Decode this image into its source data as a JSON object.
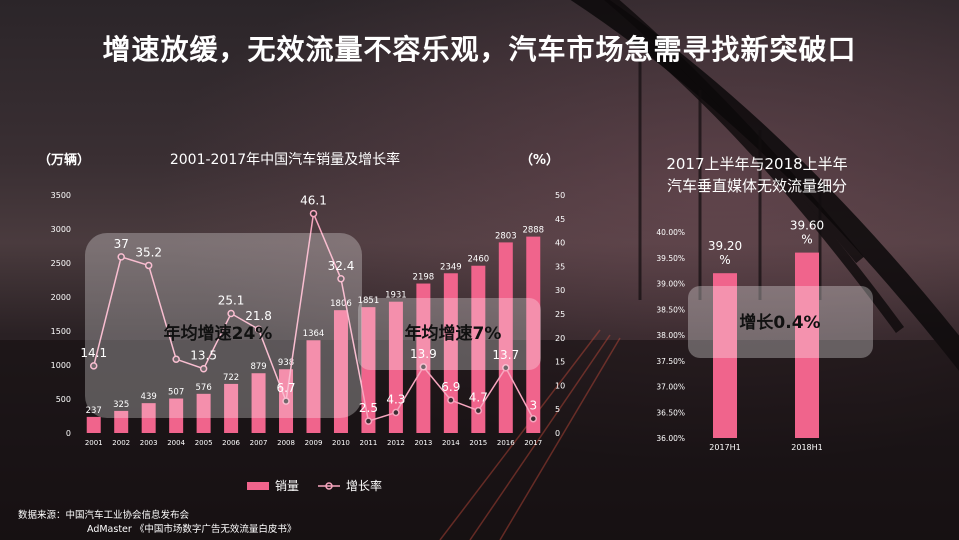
{
  "title": "增速放缓，无效流量不容乐观，汽车市场急需寻找新突破口",
  "left_chart": {
    "unit_left": "（万辆）",
    "unit_right": "（%）",
    "title": "2001-2017年中国汽车销量及增长率",
    "legend_bar": "销量",
    "legend_line": "增长率",
    "callout_1": "年均增速24%",
    "callout_2": "年均增速7%"
  },
  "right_chart": {
    "title_line1": "2017上半年与2018上半年",
    "title_line2": "汽车垂直媒体无效流量细分",
    "callout": "增长0.4%"
  },
  "source": {
    "line1": "数据来源：中国汽车工业协会信息发布会",
    "line2": "AdMaster 《中国市场数字广告无效流量白皮书》"
  },
  "colors": {
    "bar": "#f0648c",
    "line": "#f7a6bf",
    "box": "rgba(255,255,255,0.28)"
  },
  "chart_data": [
    {
      "type": "bar",
      "title": "2001-2017年中国汽车销量及增长率",
      "categories": [
        "2001",
        "2002",
        "2003",
        "2004",
        "2005",
        "2006",
        "2007",
        "2008",
        "2009",
        "2010",
        "2011",
        "2012",
        "2013",
        "2014",
        "2015",
        "2016",
        "2017"
      ],
      "series": [
        {
          "name": "销量",
          "type": "bar",
          "axis": "left",
          "values": [
            237,
            325,
            439,
            507,
            576,
            722,
            879,
            938,
            1364,
            1806,
            1851,
            1931,
            2198,
            2349,
            2460,
            2803,
            2888
          ]
        },
        {
          "name": "增长率",
          "type": "line",
          "axis": "right",
          "values": [
            14.1,
            37,
            35.2,
            15.5,
            13.5,
            25.1,
            21.8,
            6.7,
            46.1,
            32.4,
            2.5,
            4.3,
            13.9,
            6.9,
            4.7,
            13.7,
            3
          ]
        }
      ],
      "ylim_left": [
        0,
        3500
      ],
      "yticks_left": [
        0,
        500,
        1000,
        1500,
        2000,
        2500,
        3000,
        3500
      ],
      "ylim_right": [
        0,
        50
      ],
      "yticks_right": [
        0,
        5,
        10,
        15,
        20,
        25,
        30,
        35,
        40,
        45,
        50
      ],
      "ylabel_left": "（万辆）",
      "ylabel_right": "（%）",
      "point_labels": [
        "14.1",
        "37",
        "35.2",
        "",
        "13.5",
        "25.1",
        "21.8",
        "6.7",
        "46.1",
        "32.4",
        "2.5",
        "4.3",
        "13.9",
        "6.9",
        "4.7",
        "13.7",
        "3"
      ],
      "legend_position": "bottom"
    },
    {
      "type": "bar",
      "title": "2017上半年与2018上半年汽车垂直媒体无效流量细分",
      "categories": [
        "2017H1",
        "2018H1"
      ],
      "values": [
        39.2,
        39.6
      ],
      "value_labels": [
        "39.20%",
        "39.60%"
      ],
      "ylim": [
        36.0,
        40.0
      ],
      "yticks": [
        "36.00%",
        "36.50%",
        "37.00%",
        "37.50%",
        "38.00%",
        "38.50%",
        "39.00%",
        "39.50%",
        "40.00%"
      ]
    }
  ]
}
